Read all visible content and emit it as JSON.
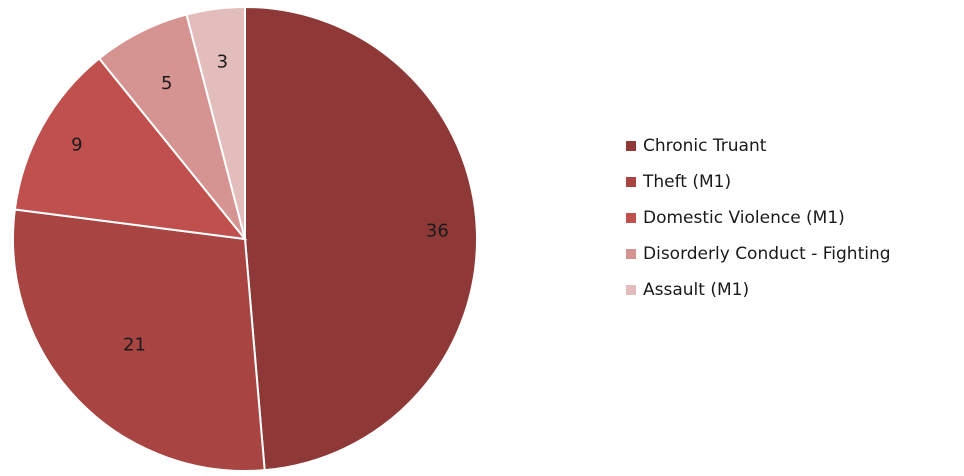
{
  "chart_data": {
    "type": "pie",
    "categories": [
      "Chronic Truant",
      "Theft (M1)",
      "Domestic Violence (M1)",
      "Disorderly Conduct - Fighting",
      "Assault (M1)"
    ],
    "values": [
      36,
      21,
      9,
      5,
      3
    ],
    "colors": [
      "#8e3937",
      "#a84442",
      "#c0504d",
      "#d59392",
      "#e3bcbc"
    ],
    "data_labels": [
      "36",
      "21",
      "9",
      "5",
      "3"
    ],
    "start_angle": "12 o'clock",
    "direction": "clockwise",
    "legend_position": "right"
  }
}
